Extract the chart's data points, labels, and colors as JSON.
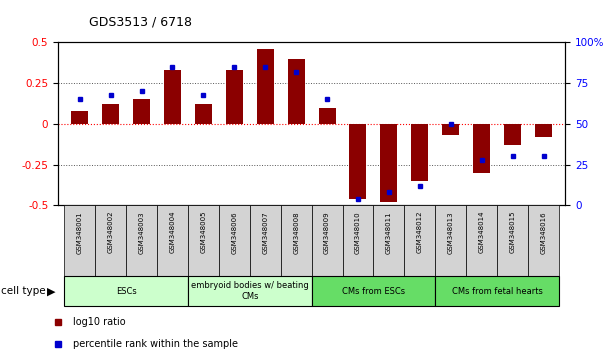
{
  "title": "GDS3513 / 6718",
  "samples": [
    "GSM348001",
    "GSM348002",
    "GSM348003",
    "GSM348004",
    "GSM348005",
    "GSM348006",
    "GSM348007",
    "GSM348008",
    "GSM348009",
    "GSM348010",
    "GSM348011",
    "GSM348012",
    "GSM348013",
    "GSM348014",
    "GSM348015",
    "GSM348016"
  ],
  "log10_ratio": [
    0.08,
    0.12,
    0.15,
    0.33,
    0.12,
    0.33,
    0.46,
    0.4,
    0.1,
    -0.46,
    -0.48,
    -0.35,
    -0.07,
    -0.3,
    -0.13,
    -0.08
  ],
  "percentile_rank": [
    65,
    68,
    70,
    85,
    68,
    85,
    85,
    82,
    65,
    4,
    8,
    12,
    50,
    28,
    30,
    30
  ],
  "bar_color": "#8B0000",
  "dot_color": "#0000CD",
  "ylim_left": [
    -0.5,
    0.5
  ],
  "ylim_right": [
    0,
    100
  ],
  "yticks_left": [
    -0.5,
    -0.25,
    0,
    0.25,
    0.5
  ],
  "yticks_right": [
    0,
    25,
    50,
    75,
    100
  ],
  "hlines_dotted": [
    -0.25,
    0.25
  ],
  "hline_red": 0,
  "cell_type_groups": [
    {
      "label": "ESCs",
      "start": 0,
      "end": 3,
      "color": "#CCFFCC"
    },
    {
      "label": "embryoid bodies w/ beating\nCMs",
      "start": 4,
      "end": 7,
      "color": "#CCFFCC"
    },
    {
      "label": "CMs from ESCs",
      "start": 8,
      "end": 11,
      "color": "#66DD66"
    },
    {
      "label": "CMs from fetal hearts",
      "start": 12,
      "end": 15,
      "color": "#66DD66"
    }
  ],
  "legend_red_label": "log10 ratio",
  "legend_blue_label": "percentile rank within the sample",
  "cell_type_label": "cell type"
}
